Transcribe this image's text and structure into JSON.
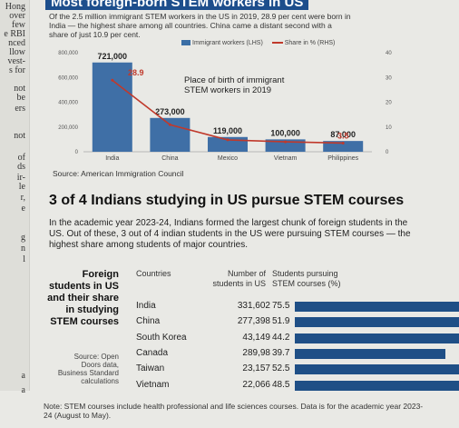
{
  "margin_text": [
    "Hong",
    "over",
    "few",
    "e RBI",
    "nced",
    "llow",
    "vest-",
    "s for",
    "not",
    "be",
    "ers",
    "not",
    "of",
    "ds",
    "ir-",
    "le",
    "r,",
    "e",
    "g",
    "n",
    "l",
    "a",
    "a"
  ],
  "top": {
    "title": "Most foreign-born STEM workers in US",
    "subtitle": "Of the 2.5 million immigrant STEM workers in the US in 2019, 28.9 per cent were born in India — the highest share among all countries. China came a distant second with a share of just 10.9 per cent.",
    "legend_bar": "Immigrant workers (LHS)",
    "legend_line": "Share in % (RHS)",
    "chart_title_line1": "Place of birth of immigrant",
    "chart_title_line2": "STEM workers in 2019",
    "source": "Source: American Immigration Council"
  },
  "chart_data": [
    {
      "type": "bar",
      "title": "Place of birth of immigrant STEM workers in 2019",
      "categories": [
        "India",
        "China",
        "Mexico",
        "Vietnam",
        "Philippines"
      ],
      "series": [
        {
          "name": "Immigrant workers (LHS)",
          "values": [
            721000,
            273000,
            119000,
            100000,
            87000
          ],
          "labels": [
            "721,000",
            "273,000",
            "119,000",
            "100,000",
            "87,000"
          ]
        },
        {
          "name": "Share in % (RHS)",
          "type": "line",
          "values": [
            28.9,
            10.9,
            4.8,
            4.0,
            3.5
          ],
          "labels": [
            "28.9",
            "",
            "",
            "",
            "3.5"
          ]
        }
      ],
      "yticks_left": [
        "0",
        "200,000",
        "400,000",
        "600,000",
        "800,000"
      ],
      "ylim_left": [
        0,
        800000
      ],
      "yticks_right": [
        "0",
        "10",
        "20",
        "30",
        "40"
      ],
      "ylim_right": [
        0,
        40
      ],
      "grid": false
    },
    {
      "type": "bar",
      "title": "Foreign students in US and their share in studying STEM courses",
      "categories": [
        "India",
        "China",
        "South Korea",
        "Canada",
        "Taiwan",
        "Vietnam"
      ],
      "students": [
        "331,602",
        "277,398",
        "43,149",
        "289,98",
        "23,157",
        "22,066"
      ],
      "series": [
        {
          "name": "Students pursuing STEM courses (%)",
          "values": [
            75.5,
            51.9,
            44.2,
            39.7,
            52.5,
            48.5
          ]
        }
      ]
    }
  ],
  "section2": {
    "headline": "3 of 4 Indians studying in US pursue STEM courses",
    "body": "In the academic year 2023-24, Indians formed the largest chunk of foreign students in the US. Out of these, 3 out of 4 indian students in the US were pursuing STEM courses — the highest share among students of major countries.",
    "table_title": [
      "Foreign",
      "students in US",
      "and their share",
      "in studying",
      "STEM courses"
    ],
    "col_countries": "Countries",
    "col_students": [
      "Number of",
      "students in US"
    ],
    "col_share": [
      "Students pursuing",
      "STEM courses (%)"
    ],
    "percent_labels": [
      "75.5",
      "51.9",
      "44.2",
      "39.7",
      "52.5",
      "48.5"
    ],
    "source": [
      "Source: Open",
      "Doors data,",
      "Business Standard",
      "calculations"
    ],
    "note": "Note: STEM courses include health professional and life sciences courses. Data is for the academic year 2023-24 (August to May)."
  }
}
